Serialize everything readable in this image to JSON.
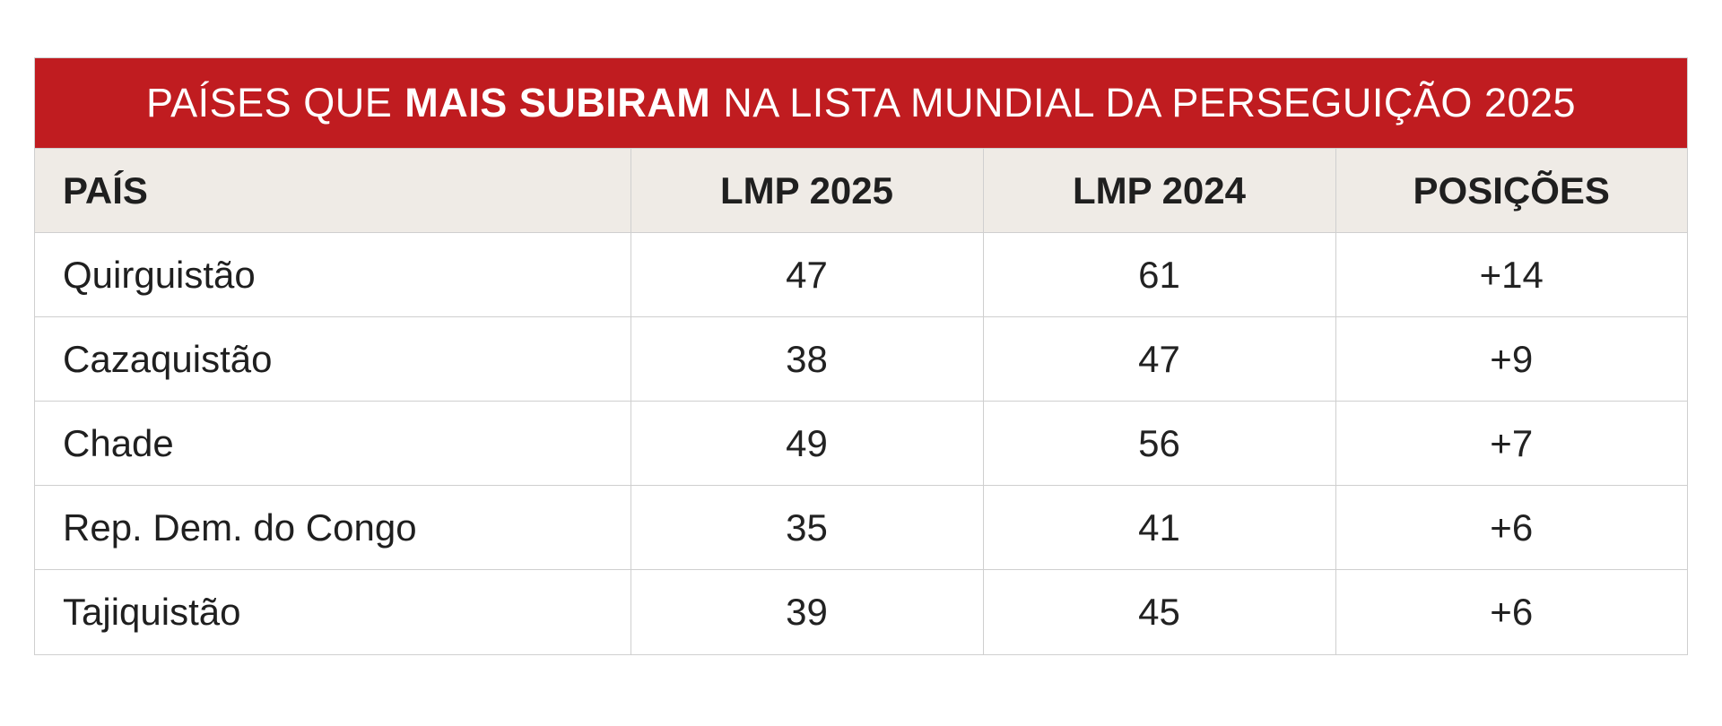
{
  "title": {
    "part1": "PAÍSES QUE",
    "bold": "MAIS SUBIRAM",
    "part2": "NA LISTA MUNDIAL DA PERSEGUIÇÃO 2025"
  },
  "columns": [
    "PAÍS",
    "LMP 2025",
    "LMP 2024",
    "POSIÇÕES"
  ],
  "rows": [
    {
      "country": "Quirguistão",
      "lmp2025": "47",
      "lmp2024": "61",
      "positions": "+14"
    },
    {
      "country": "Cazaquistão",
      "lmp2025": "38",
      "lmp2024": "47",
      "positions": "+9"
    },
    {
      "country": "Chade",
      "lmp2025": "49",
      "lmp2024": "56",
      "positions": "+7"
    },
    {
      "country": "Rep. Dem. do Congo",
      "lmp2025": "35",
      "lmp2024": "41",
      "positions": "+6"
    },
    {
      "country": "Tajiquistão",
      "lmp2025": "39",
      "lmp2024": "45",
      "positions": "+6"
    }
  ],
  "colors": {
    "title_bg": "#c01c20",
    "title_text": "#ffffff",
    "header_bg": "#efebe6",
    "border": "#cfcfcf"
  }
}
